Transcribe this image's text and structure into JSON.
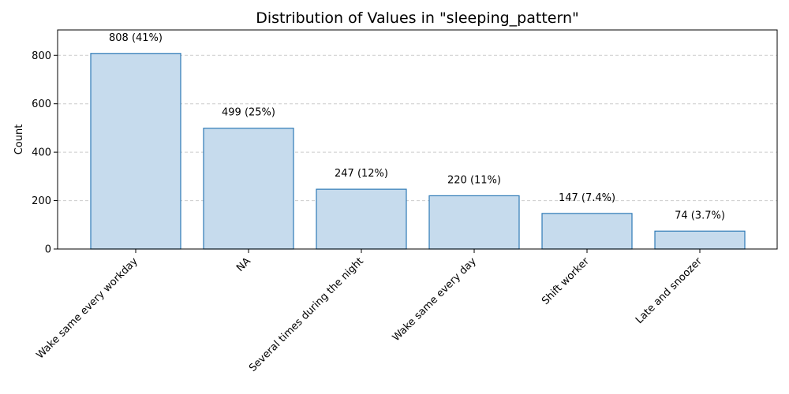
{
  "chart_data": {
    "type": "bar",
    "title": "Distribution of Values in \"sleeping_pattern\"",
    "xlabel": "",
    "ylabel": "Count",
    "categories": [
      "Wake same every workday",
      "NA",
      "Several times during the night",
      "Wake same every day",
      "Shift worker",
      "Late and snoozer"
    ],
    "values": [
      808,
      499,
      247,
      220,
      147,
      74
    ],
    "data_labels": [
      "808 (41%)",
      "499 (25%)",
      "247 (12%)",
      "220 (11%)",
      "147 (7.4%)",
      "74 (3.7%)"
    ],
    "y_ticks": [
      0,
      200,
      400,
      600,
      800
    ],
    "ylim": [
      0,
      905
    ],
    "grid": "y-dashed",
    "colors": {
      "bar_fill": "#c6dbed",
      "bar_edge": "#2e7ab6",
      "grid": "#cccccc",
      "axis": "#000000"
    }
  }
}
